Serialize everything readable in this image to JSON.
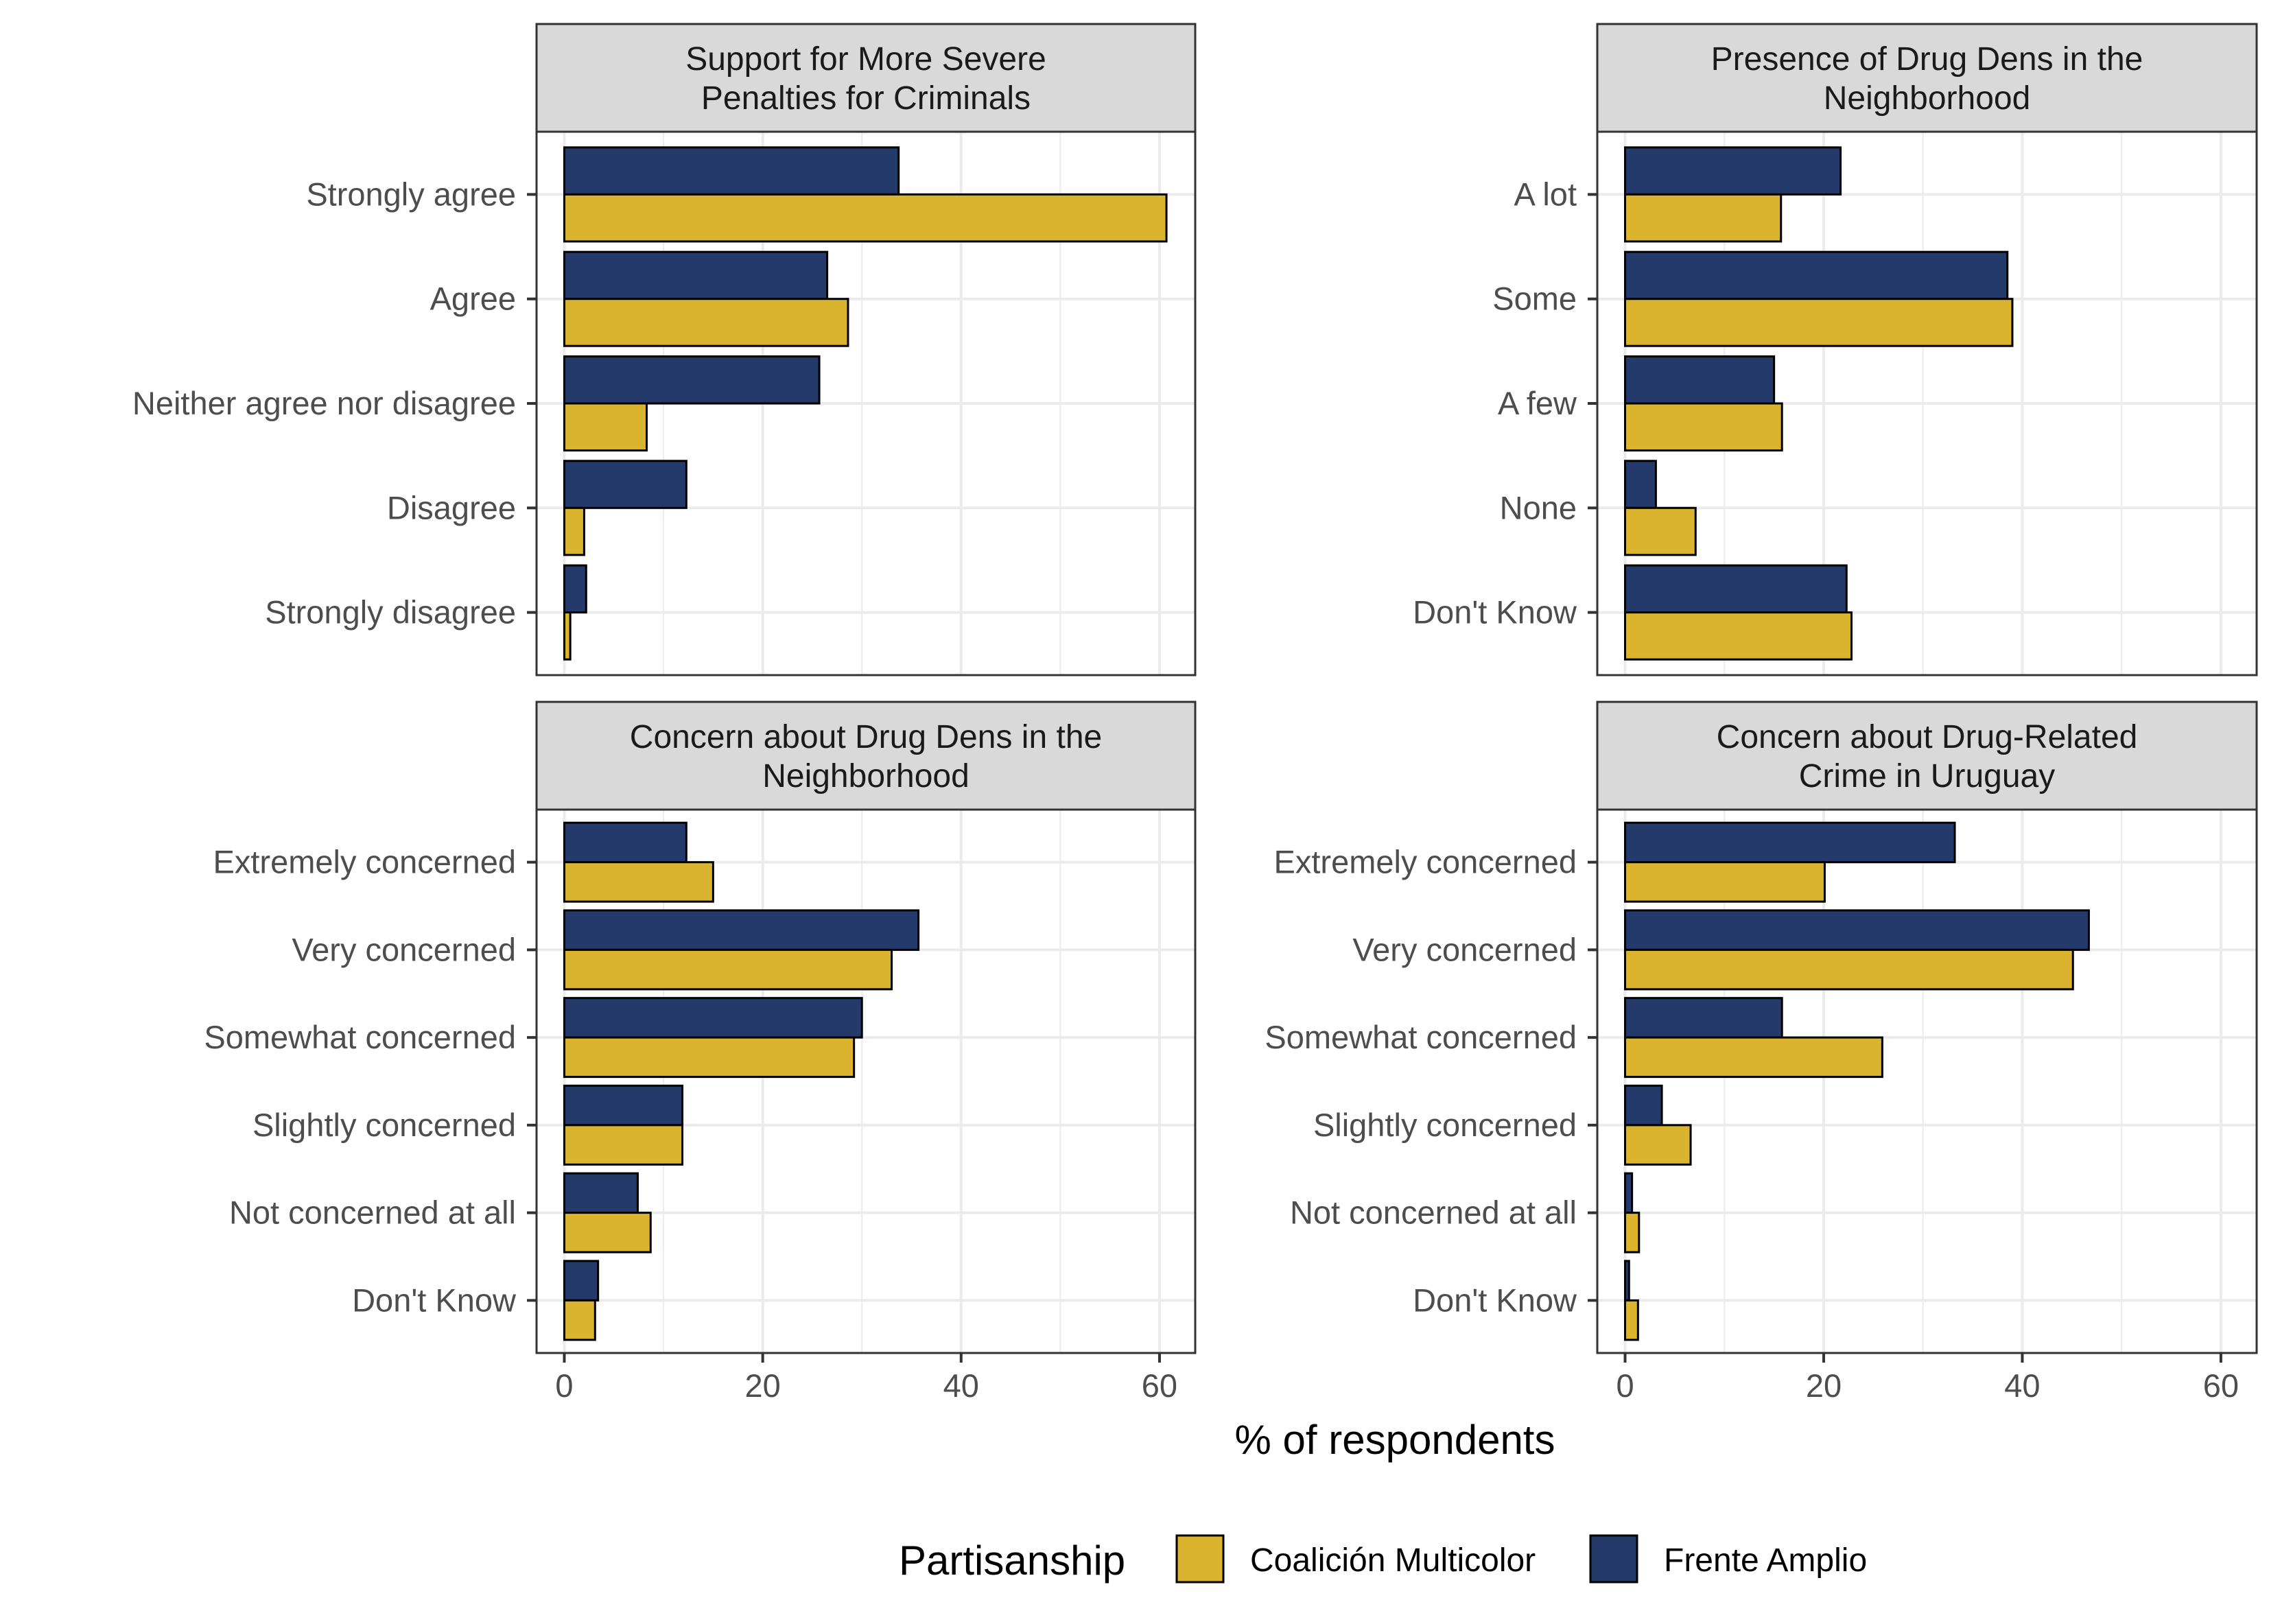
{
  "x_axis_label": "% of respondents",
  "legend": {
    "title": "Partisanship",
    "items": [
      {
        "label": "Coalición Multicolor",
        "color": "#DAB42F"
      },
      {
        "label": "Frente Amplio",
        "color": "#243A6B"
      }
    ]
  },
  "chart_data": [
    {
      "type": "bar",
      "orientation": "horizontal",
      "title": "Support for More Severe Penalties for Criminals",
      "title_lines": [
        "Support for More Severe",
        "Penalties for Criminals"
      ],
      "categories": [
        "Strongly agree",
        "Agree",
        "Neither agree nor disagree",
        "Disagree",
        "Strongly disagree"
      ],
      "series": [
        {
          "name": "Frente Amplio",
          "color": "#243A6B",
          "values": [
            33.7,
            26.5,
            25.7,
            12.3,
            2.2
          ]
        },
        {
          "name": "Coalición Multicolor",
          "color": "#DAB42F",
          "values": [
            60.7,
            28.6,
            8.3,
            2.0,
            0.6
          ]
        }
      ],
      "xlim": [
        -2.8,
        63.6
      ],
      "xticks": [
        0,
        20,
        40,
        60
      ],
      "grid": true,
      "show_x_axis": false
    },
    {
      "type": "bar",
      "orientation": "horizontal",
      "title": "Presence of Drug Dens in the Neighborhood",
      "title_lines": [
        "Presence of Drug Dens in the",
        "Neighborhood"
      ],
      "categories": [
        "A lot",
        "Some",
        "A few",
        "None",
        "Don't Know"
      ],
      "series": [
        {
          "name": "Frente Amplio",
          "color": "#243A6B",
          "values": [
            21.7,
            38.5,
            15.0,
            3.1,
            22.3
          ]
        },
        {
          "name": "Coalición Multicolor",
          "color": "#DAB42F",
          "values": [
            15.7,
            39.0,
            15.8,
            7.1,
            22.8
          ]
        }
      ],
      "xlim": [
        -2.8,
        63.6
      ],
      "xticks": [
        0,
        20,
        40,
        60
      ],
      "grid": true,
      "show_x_axis": false
    },
    {
      "type": "bar",
      "orientation": "horizontal",
      "title": "Concern about Drug Dens in the Neighborhood",
      "title_lines": [
        "Concern about Drug Dens in the",
        "Neighborhood"
      ],
      "categories": [
        "Extremely concerned",
        "Very concerned",
        "Somewhat concerned",
        "Slightly concerned",
        "Not concerned at all",
        "Don't Know"
      ],
      "series": [
        {
          "name": "Frente Amplio",
          "color": "#243A6B",
          "values": [
            12.3,
            35.7,
            30.0,
            11.9,
            7.4,
            3.4
          ]
        },
        {
          "name": "Coalición Multicolor",
          "color": "#DAB42F",
          "values": [
            15.0,
            33.0,
            29.2,
            11.9,
            8.7,
            3.1
          ]
        }
      ],
      "xlim": [
        -2.8,
        63.6
      ],
      "xticks": [
        0,
        20,
        40,
        60
      ],
      "grid": true,
      "show_x_axis": true
    },
    {
      "type": "bar",
      "orientation": "horizontal",
      "title": "Concern about Drug-Related Crime in Uruguay",
      "title_lines": [
        "Concern about Drug-Related",
        "Crime in Uruguay"
      ],
      "categories": [
        "Extremely concerned",
        "Very concerned",
        "Somewhat concerned",
        "Slightly concerned",
        "Not concerned at all",
        "Don't Know"
      ],
      "series": [
        {
          "name": "Frente Amplio",
          "color": "#243A6B",
          "values": [
            33.2,
            46.7,
            15.8,
            3.7,
            0.7,
            0.4
          ]
        },
        {
          "name": "Coalición Multicolor",
          "color": "#DAB42F",
          "values": [
            20.1,
            45.1,
            25.9,
            6.6,
            1.4,
            1.3
          ]
        }
      ],
      "xlim": [
        -2.8,
        63.6
      ],
      "xticks": [
        0,
        20,
        40,
        60
      ],
      "grid": true,
      "show_x_axis": true
    }
  ]
}
